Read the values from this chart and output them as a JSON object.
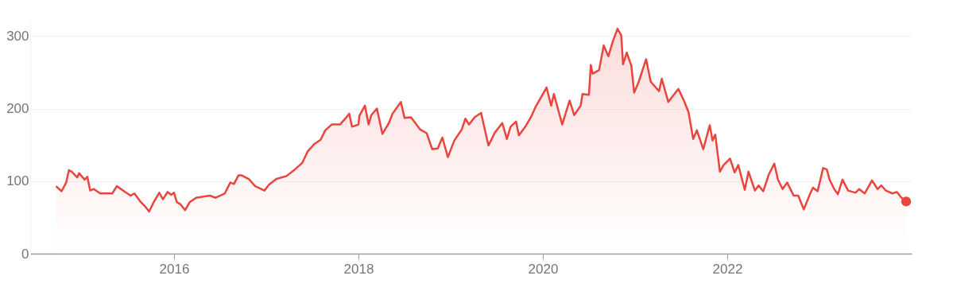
{
  "chart_data": {
    "type": "area",
    "xlim": [
      2014.44,
      2024.0
    ],
    "xticks": [
      2016,
      2018,
      2020,
      2022
    ],
    "ylim": [
      0,
      320
    ],
    "yticks": [
      0,
      100,
      200,
      300
    ],
    "grid": "y",
    "series": [
      {
        "color": "#e8453c",
        "x": [
          2014.72,
          2014.78,
          2014.83,
          2014.86,
          2014.89,
          2014.95,
          2014.97,
          2015.03,
          2015.06,
          2015.09,
          2015.13,
          2015.2,
          2015.33,
          2015.38,
          2015.47,
          2015.53,
          2015.57,
          2015.64,
          2015.68,
          2015.73,
          2015.78,
          2015.84,
          2015.88,
          2015.93,
          2015.97,
          2016.0,
          2016.03,
          2016.07,
          2016.12,
          2016.17,
          2016.24,
          2016.39,
          2016.45,
          2016.55,
          2016.61,
          2016.65,
          2016.7,
          2016.73,
          2016.81,
          2016.88,
          2016.98,
          2017.03,
          2017.11,
          2017.22,
          2017.31,
          2017.39,
          2017.45,
          2017.52,
          2017.59,
          2017.64,
          2017.71,
          2017.8,
          2017.87,
          2017.9,
          2017.93,
          2018.0,
          2018.01,
          2018.07,
          2018.11,
          2018.14,
          2018.2,
          2018.26,
          2018.33,
          2018.37,
          2018.46,
          2018.5,
          2018.57,
          2018.67,
          2018.74,
          2018.8,
          2018.86,
          2018.91,
          2018.97,
          2019.04,
          2019.12,
          2019.16,
          2019.2,
          2019.26,
          2019.33,
          2019.41,
          2019.48,
          2019.56,
          2019.61,
          2019.65,
          2019.71,
          2019.74,
          2019.81,
          2019.87,
          2019.92,
          2020.04,
          2020.09,
          2020.12,
          2020.21,
          2020.29,
          2020.34,
          2020.41,
          2020.43,
          2020.5,
          2020.52,
          2020.54,
          2020.61,
          2020.66,
          2020.71,
          2020.76,
          2020.81,
          2020.85,
          2020.87,
          2020.91,
          2020.96,
          2020.99,
          2021.04,
          2021.12,
          2021.17,
          2021.26,
          2021.29,
          2021.36,
          2021.42,
          2021.47,
          2021.53,
          2021.58,
          2021.63,
          2021.67,
          2021.74,
          2021.81,
          2021.84,
          2021.87,
          2021.92,
          2021.96,
          2022.03,
          2022.08,
          2022.12,
          2022.19,
          2022.23,
          2022.3,
          2022.34,
          2022.39,
          2022.45,
          2022.51,
          2022.55,
          2022.6,
          2022.65,
          2022.72,
          2022.77,
          2022.83,
          2022.9,
          2022.93,
          2022.98,
          2023.04,
          2023.08,
          2023.11,
          2023.16,
          2023.2,
          2023.25,
          2023.31,
          2023.39,
          2023.43,
          2023.49,
          2023.57,
          2023.63,
          2023.67,
          2023.72,
          2023.79,
          2023.84,
          2023.89,
          2023.94
        ],
        "values": [
          93,
          86,
          98,
          115,
          113,
          105,
          111,
          102,
          106,
          87,
          89,
          83,
          83,
          93,
          85,
          80,
          83,
          71,
          66,
          58,
          71,
          84,
          75,
          85,
          81,
          84,
          71,
          68,
          60,
          71,
          77,
          80,
          77,
          83,
          98,
          96,
          108,
          108,
          103,
          93,
          87,
          95,
          103,
          107,
          116,
          125,
          141,
          151,
          157,
          170,
          178,
          178,
          188,
          193,
          175,
          178,
          190,
          204,
          178,
          191,
          200,
          165,
          180,
          193,
          209,
          187,
          188,
          171,
          166,
          144,
          145,
          160,
          133,
          156,
          171,
          186,
          178,
          188,
          194,
          149,
          167,
          180,
          158,
          175,
          182,
          163,
          175,
          188,
          202,
          229,
          204,
          220,
          178,
          211,
          191,
          204,
          220,
          219,
          260,
          248,
          253,
          287,
          272,
          293,
          310,
          301,
          261,
          277,
          259,
          222,
          237,
          268,
          237,
          224,
          241,
          209,
          219,
          227,
          211,
          195,
          158,
          170,
          144,
          177,
          156,
          164,
          113,
          122,
          131,
          112,
          122,
          88,
          113,
          87,
          94,
          86,
          109,
          124,
          102,
          89,
          98,
          80,
          80,
          61,
          83,
          91,
          86,
          118,
          116,
          102,
          89,
          82,
          102,
          87,
          84,
          89,
          83,
          101,
          89,
          94,
          87,
          83,
          85,
          77,
          72
        ]
      },
      {
        "type": "scatter",
        "marker": "circle",
        "color": "#e8453c",
        "x": [
          2023.94
        ],
        "values": [
          72
        ]
      }
    ]
  }
}
